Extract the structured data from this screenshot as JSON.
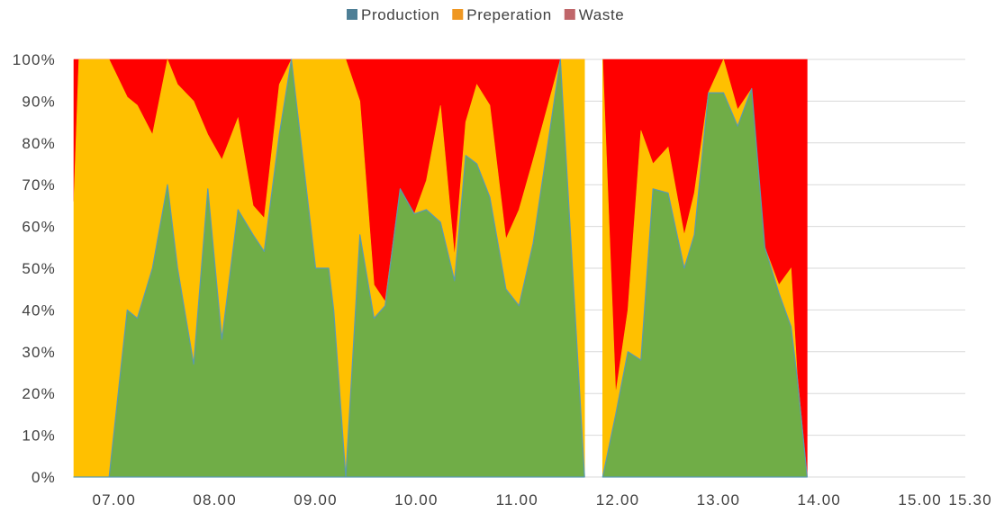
{
  "chart_data": {
    "type": "area",
    "stacked": "percent",
    "legend": {
      "placement": "top-center",
      "entries": [
        {
          "name": "Production",
          "swatch_color": "#4e7f96"
        },
        {
          "name": "Preperation",
          "swatch_color": "#ef9722"
        },
        {
          "name": "Waste",
          "swatch_color": "#c0666a"
        }
      ]
    },
    "fill_colors": {
      "production": "#70ad47",
      "preparation": "#ffc000",
      "waste": "#ff0000",
      "edge": "#5a9ab0"
    },
    "x_axis": {
      "range": [
        6.6,
        15.45
      ],
      "ticks": [
        {
          "value": 7.0,
          "label": "07.00"
        },
        {
          "value": 8.0,
          "label": "08.00"
        },
        {
          "value": 9.0,
          "label": "09.00"
        },
        {
          "value": 10.0,
          "label": "10.00"
        },
        {
          "value": 11.0,
          "label": "11.00"
        },
        {
          "value": 12.0,
          "label": "12.00"
        },
        {
          "value": 13.0,
          "label": "13.00"
        },
        {
          "value": 14.0,
          "label": "14.00"
        },
        {
          "value": 15.0,
          "label": "15.00"
        },
        {
          "value": 15.5,
          "label": "15.30"
        }
      ]
    },
    "y_axis": {
      "range": [
        0,
        100
      ],
      "ticks": [
        {
          "value": 0,
          "label": "0%"
        },
        {
          "value": 10,
          "label": "10%"
        },
        {
          "value": 20,
          "label": "20%"
        },
        {
          "value": 30,
          "label": "30%"
        },
        {
          "value": 40,
          "label": "40%"
        },
        {
          "value": 50,
          "label": "50%"
        },
        {
          "value": 60,
          "label": "60%"
        },
        {
          "value": 70,
          "label": "70%"
        },
        {
          "value": 80,
          "label": "80%"
        },
        {
          "value": 90,
          "label": "90%"
        },
        {
          "value": 100,
          "label": "100%"
        }
      ],
      "grid": true
    },
    "segments": [
      {
        "points": [
          {
            "x": 6.6,
            "production": 0,
            "top": 66
          },
          {
            "x": 6.65,
            "production": 0,
            "top": 100
          },
          {
            "x": 6.83,
            "production": 0,
            "top": 100
          },
          {
            "x": 6.95,
            "production": 0,
            "top": 100
          },
          {
            "x": 7.13,
            "production": 40,
            "top": 91
          },
          {
            "x": 7.23,
            "production": 38,
            "top": 89
          },
          {
            "x": 7.38,
            "production": 50,
            "top": 82
          },
          {
            "x": 7.53,
            "production": 70,
            "top": 100
          },
          {
            "x": 7.63,
            "production": 50,
            "top": 94
          },
          {
            "x": 7.79,
            "production": 27,
            "top": 90
          },
          {
            "x": 7.93,
            "production": 69,
            "top": 82
          },
          {
            "x": 8.07,
            "production": 33,
            "top": 76
          },
          {
            "x": 8.23,
            "production": 64,
            "top": 86
          },
          {
            "x": 8.38,
            "production": 58,
            "top": 65
          },
          {
            "x": 8.49,
            "production": 54,
            "top": 62
          },
          {
            "x": 8.64,
            "production": 82,
            "top": 94
          },
          {
            "x": 8.76,
            "production": 100,
            "top": 100
          },
          {
            "x": 9.0,
            "production": 50,
            "top": 100
          },
          {
            "x": 9.13,
            "production": 50,
            "top": 100
          },
          {
            "x": 9.18,
            "production": 40,
            "top": 100
          },
          {
            "x": 9.3,
            "production": 0,
            "top": 100
          },
          {
            "x": 9.44,
            "production": 58,
            "top": 90
          },
          {
            "x": 9.58,
            "production": 38,
            "top": 46
          },
          {
            "x": 9.69,
            "production": 41,
            "top": 42
          },
          {
            "x": 9.84,
            "production": 69,
            "top": 69
          },
          {
            "x": 9.98,
            "production": 63,
            "top": 63
          },
          {
            "x": 10.1,
            "production": 64,
            "top": 71
          },
          {
            "x": 10.24,
            "production": 61,
            "top": 89
          },
          {
            "x": 10.38,
            "production": 47,
            "top": 53
          },
          {
            "x": 10.49,
            "production": 77,
            "top": 85
          },
          {
            "x": 10.6,
            "production": 75,
            "top": 94
          },
          {
            "x": 10.73,
            "production": 67,
            "top": 89
          },
          {
            "x": 10.89,
            "production": 45,
            "top": 57
          },
          {
            "x": 11.02,
            "production": 41,
            "top": 64
          },
          {
            "x": 11.16,
            "production": 56,
            "top": 76
          },
          {
            "x": 11.43,
            "production": 100,
            "top": 100
          },
          {
            "x": 11.67,
            "production": 0,
            "top": 100
          }
        ]
      },
      {
        "points": [
          {
            "x": 11.85,
            "production": 0,
            "top": 100
          },
          {
            "x": 11.98,
            "production": 15,
            "top": 20
          },
          {
            "x": 12.1,
            "production": 30,
            "top": 40
          },
          {
            "x": 12.23,
            "production": 28,
            "top": 83
          },
          {
            "x": 12.35,
            "production": 69,
            "top": 75
          },
          {
            "x": 12.5,
            "production": 68,
            "top": 79
          },
          {
            "x": 12.66,
            "production": 50,
            "top": 58
          },
          {
            "x": 12.76,
            "production": 58,
            "top": 68
          },
          {
            "x": 12.9,
            "production": 92,
            "top": 92
          },
          {
            "x": 13.05,
            "production": 92,
            "top": 100
          },
          {
            "x": 13.19,
            "production": 84,
            "top": 88
          },
          {
            "x": 13.33,
            "production": 93,
            "top": 93
          },
          {
            "x": 13.46,
            "production": 55,
            "top": 55
          },
          {
            "x": 13.6,
            "production": 44,
            "top": 46
          },
          {
            "x": 13.72,
            "production": 36,
            "top": 50
          },
          {
            "x": 13.78,
            "production": 24,
            "top": 25
          },
          {
            "x": 13.88,
            "production": 0,
            "top": 0
          }
        ]
      }
    ]
  }
}
